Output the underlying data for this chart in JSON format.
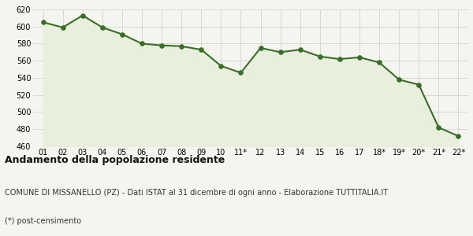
{
  "x_labels": [
    "01",
    "02",
    "03",
    "04",
    "05",
    "06",
    "07",
    "08",
    "09",
    "10",
    "11*",
    "12",
    "13",
    "14",
    "15",
    "16",
    "17",
    "18*",
    "19*",
    "20*",
    "21*",
    "22*"
  ],
  "y_values": [
    605,
    599,
    613,
    599,
    591,
    580,
    578,
    577,
    573,
    554,
    546,
    575,
    570,
    573,
    565,
    562,
    564,
    558,
    538,
    532,
    482,
    472
  ],
  "line_color": "#3a6e28",
  "fill_color": "#e8efdc",
  "marker_color": "#3a6e28",
  "bg_color": "#f5f5f0",
  "grid_color": "#cccccc",
  "ylim": [
    460,
    620
  ],
  "yticks": [
    460,
    480,
    500,
    520,
    540,
    560,
    580,
    600,
    620
  ],
  "title": "Andamento della popolazione residente",
  "subtitle": "COMUNE DI MISSANELLO (PZ) - Dati ISTAT al 31 dicembre di ogni anno - Elaborazione TUTTITALIA.IT",
  "footnote": "(*) post-censimento",
  "title_fontsize": 9,
  "subtitle_fontsize": 7,
  "footnote_fontsize": 7,
  "tick_fontsize": 7
}
